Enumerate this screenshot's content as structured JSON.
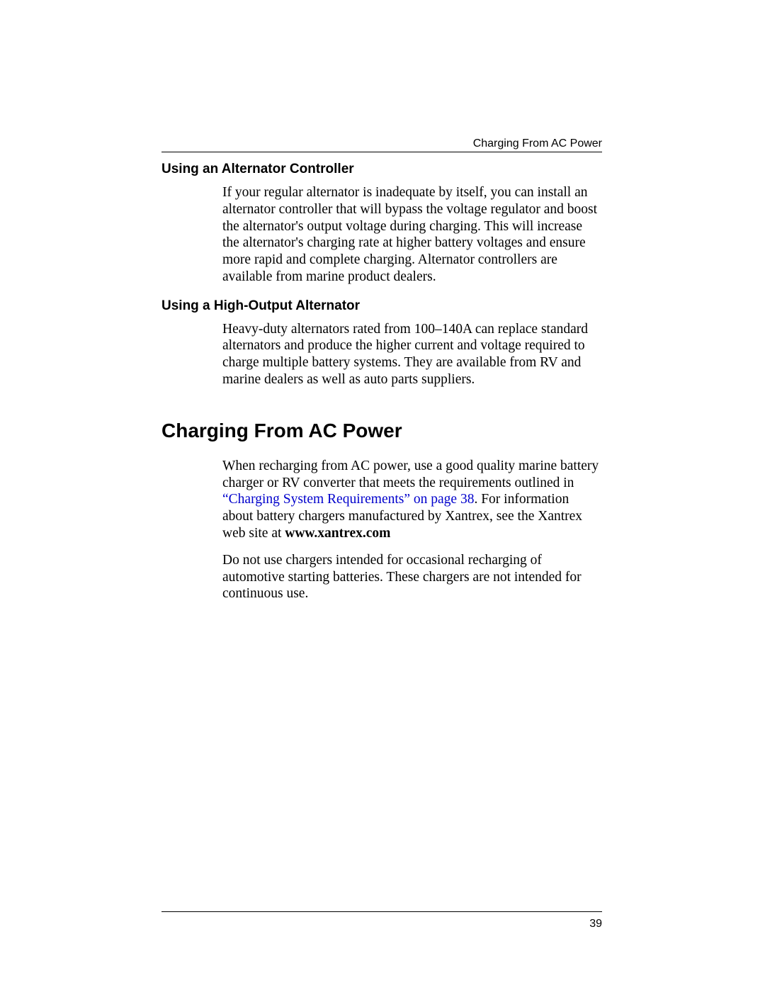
{
  "header": {
    "running_title": "Charging From AC Power"
  },
  "sections": {
    "s1": {
      "title": "Using an Alternator Controller",
      "para": "If your regular alternator is inadequate by itself, you can install an alternator controller that will bypass the voltage regulator and boost the alternator's output voltage during charging. This will increase the alternator's charging rate at higher battery voltages and ensure more rapid and complete charging. Alternator controllers are available from marine product dealers."
    },
    "s2": {
      "title": "Using a High-Output Alternator",
      "para": "Heavy-duty alternators rated from 100–140A can replace standard alternators and produce the higher current and voltage required to charge multiple battery systems. They are available from RV and marine dealers as well as auto parts suppliers."
    },
    "main": {
      "title": "Charging From AC Power",
      "p1a": "When recharging from AC power, use a good quality marine battery charger or RV converter that meets the requirements outlined in ",
      "p1_xref": "“Charging System Requirements” on page 38",
      "p1b": ". For information about battery chargers manufactured by Xantrex, see the Xantrex web site at ",
      "p1_bold": "www.xantrex.com",
      "p2": "Do not use chargers intended for occasional recharging of automotive starting batteries. These chargers are not intended for continuous use."
    }
  },
  "footer": {
    "page_number": "39"
  },
  "colors": {
    "text": "#000000",
    "link": "#0000cc",
    "background": "#ffffff",
    "rule": "#000000"
  },
  "fonts": {
    "body_family": "Times New Roman",
    "heading_family": "Verdana",
    "body_size_pt": 15,
    "subhead_size_pt": 14,
    "h1_size_pt": 21,
    "header_size_pt": 12
  }
}
